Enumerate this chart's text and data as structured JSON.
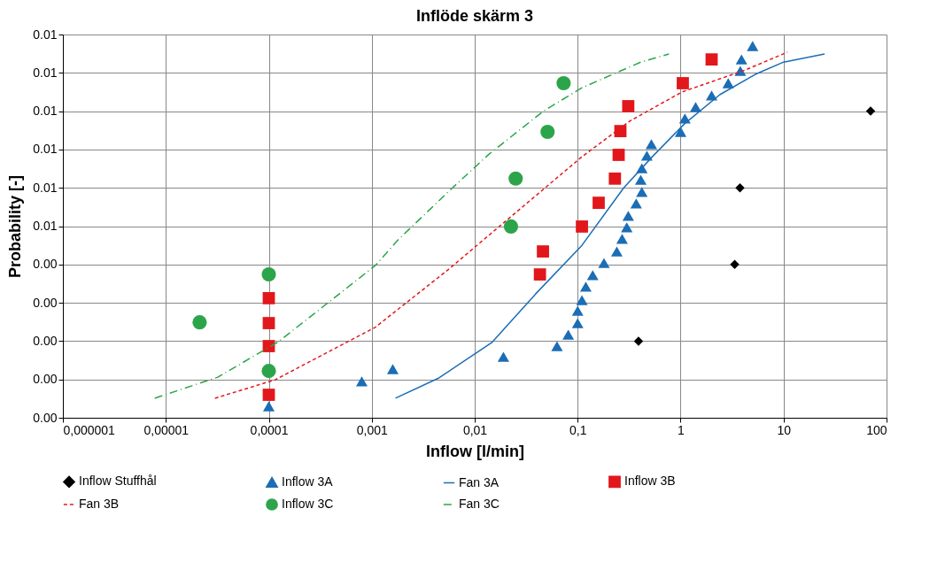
{
  "chart_data": {
    "type": "scatter",
    "title": "Inflöde skärm 3",
    "xlabel": "Inflow [l/min]",
    "ylabel": "Probability [-]",
    "log": "x",
    "grid": true,
    "legend": "bottom",
    "xlim": [
      1e-06,
      100
    ],
    "xticks": [
      {
        "value": 1e-06,
        "label": "0,000001"
      },
      {
        "value": 1e-05,
        "label": "0,00001"
      },
      {
        "value": 0.0001,
        "label": "0,0001"
      },
      {
        "value": 0.001,
        "label": "0,001"
      },
      {
        "value": 0.01,
        "label": "0,01"
      },
      {
        "value": 0.1,
        "label": "0,1"
      },
      1,
      10,
      100
    ],
    "ylim": [
      0,
      0.01
    ],
    "yticks": [
      {
        "value": 0,
        "label": "0.00"
      },
      {
        "value": 0.001,
        "label": "0.00"
      },
      {
        "value": 0.002,
        "label": "0.00"
      },
      {
        "value": 0.003,
        "label": "0.00"
      },
      {
        "value": 0.004,
        "label": "0.00"
      },
      {
        "value": 0.005,
        "label": "0.01"
      },
      {
        "value": 0.006,
        "label": "0.01"
      },
      {
        "value": 0.007,
        "label": "0.01"
      },
      {
        "value": 0.008,
        "label": "0.01"
      },
      {
        "value": 0.009,
        "label": "0.01"
      },
      {
        "value": 0.01,
        "label": "0.01"
      }
    ],
    "series": [
      {
        "name": "Inflow Stuffhål",
        "marker": "diamond",
        "color": "#000000",
        "x": [
          70,
          3.77,
          3.35,
          0.39
        ],
        "values": [
          0.008,
          0.006,
          0.004,
          0.002
        ]
      },
      {
        "name": "Inflow 3A",
        "marker": "triangle",
        "color": "#1b6db5",
        "x": [
          5.0,
          3.9,
          3.8,
          2.9,
          2.0,
          1.4,
          1.1,
          1.0,
          0.52,
          0.47,
          0.42,
          0.41,
          0.42,
          0.37,
          0.31,
          0.3,
          0.27,
          0.24,
          0.18,
          0.14,
          0.12,
          0.11,
          0.1,
          0.1,
          0.081,
          0.063,
          0.019,
          0.0016,
          0.0008,
          0.0001
        ],
        "values": [
          0.0097,
          0.00935,
          0.00905,
          0.00873,
          0.00841,
          0.00811,
          0.00781,
          0.00746,
          0.00714,
          0.00684,
          0.00651,
          0.00621,
          0.00589,
          0.00559,
          0.00527,
          0.00497,
          0.00467,
          0.00434,
          0.00404,
          0.00372,
          0.00342,
          0.00307,
          0.00279,
          0.00247,
          0.00217,
          0.00187,
          0.00159,
          0.00127,
          0.00095,
          0.0003
        ]
      },
      {
        "name": "Fan 3A",
        "type": "line",
        "marker": "none",
        "line_style": "solid",
        "color": "#1b6db5",
        "x": [
          0.0017,
          0.0045,
          0.0146,
          0.039,
          0.11,
          0.28,
          0.53,
          1.09,
          2.4,
          5.3,
          10,
          25
        ],
        "values": [
          0.00051,
          0.00104,
          0.00196,
          0.00323,
          0.0045,
          0.006,
          0.00681,
          0.00767,
          0.00843,
          0.00896,
          0.00928,
          0.00949
        ]
      },
      {
        "name": "Inflow 3B",
        "marker": "square",
        "color": "#e2171b",
        "x": [
          2.0,
          1.05,
          0.31,
          0.26,
          0.25,
          0.23,
          0.16,
          0.11,
          0.046,
          0.043,
          0.0001,
          0.0001,
          0.0001,
          0.0001
        ],
        "values": [
          0.00935,
          0.00873,
          0.00813,
          0.00748,
          0.00686,
          0.00624,
          0.00561,
          0.00499,
          0.00434,
          0.00374,
          0.00312,
          0.00247,
          0.00187,
          0.0006
        ]
      },
      {
        "name": "Fan 3B",
        "type": "line",
        "marker": "none",
        "line_style": "dashed",
        "color": "#e2171b",
        "x": [
          3e-05,
          0.000115,
          0.00108,
          0.0055,
          0.023,
          0.11,
          0.32,
          1.03,
          4.3,
          10.9
        ],
        "values": [
          0.00051,
          0.00099,
          0.00236,
          0.00386,
          0.00527,
          0.00681,
          0.00774,
          0.0085,
          0.00908,
          0.00954
        ]
      },
      {
        "name": "Inflow 3C",
        "marker": "circle",
        "color": "#2ca54a",
        "x": [
          0.073,
          0.051,
          0.025,
          0.0225,
          0.0001,
          2.13e-05,
          0.0001
        ],
        "values": [
          0.00873,
          0.00746,
          0.00624,
          0.00499,
          0.00374,
          0.00249,
          0.00122
        ]
      },
      {
        "name": "Fan 3C",
        "type": "line",
        "marker": "none",
        "line_style": "dashdot",
        "color": "#2ca54a",
        "x": [
          7.8e-06,
          3.2e-05,
          0.000125,
          0.00108,
          0.0018,
          0.0055,
          0.0138,
          0.047,
          0.11,
          0.41,
          0.77
        ],
        "values": [
          0.00051,
          0.00106,
          0.00199,
          0.00397,
          0.00464,
          0.00589,
          0.00688,
          0.00801,
          0.00861,
          0.00928,
          0.00949
        ]
      }
    ]
  }
}
